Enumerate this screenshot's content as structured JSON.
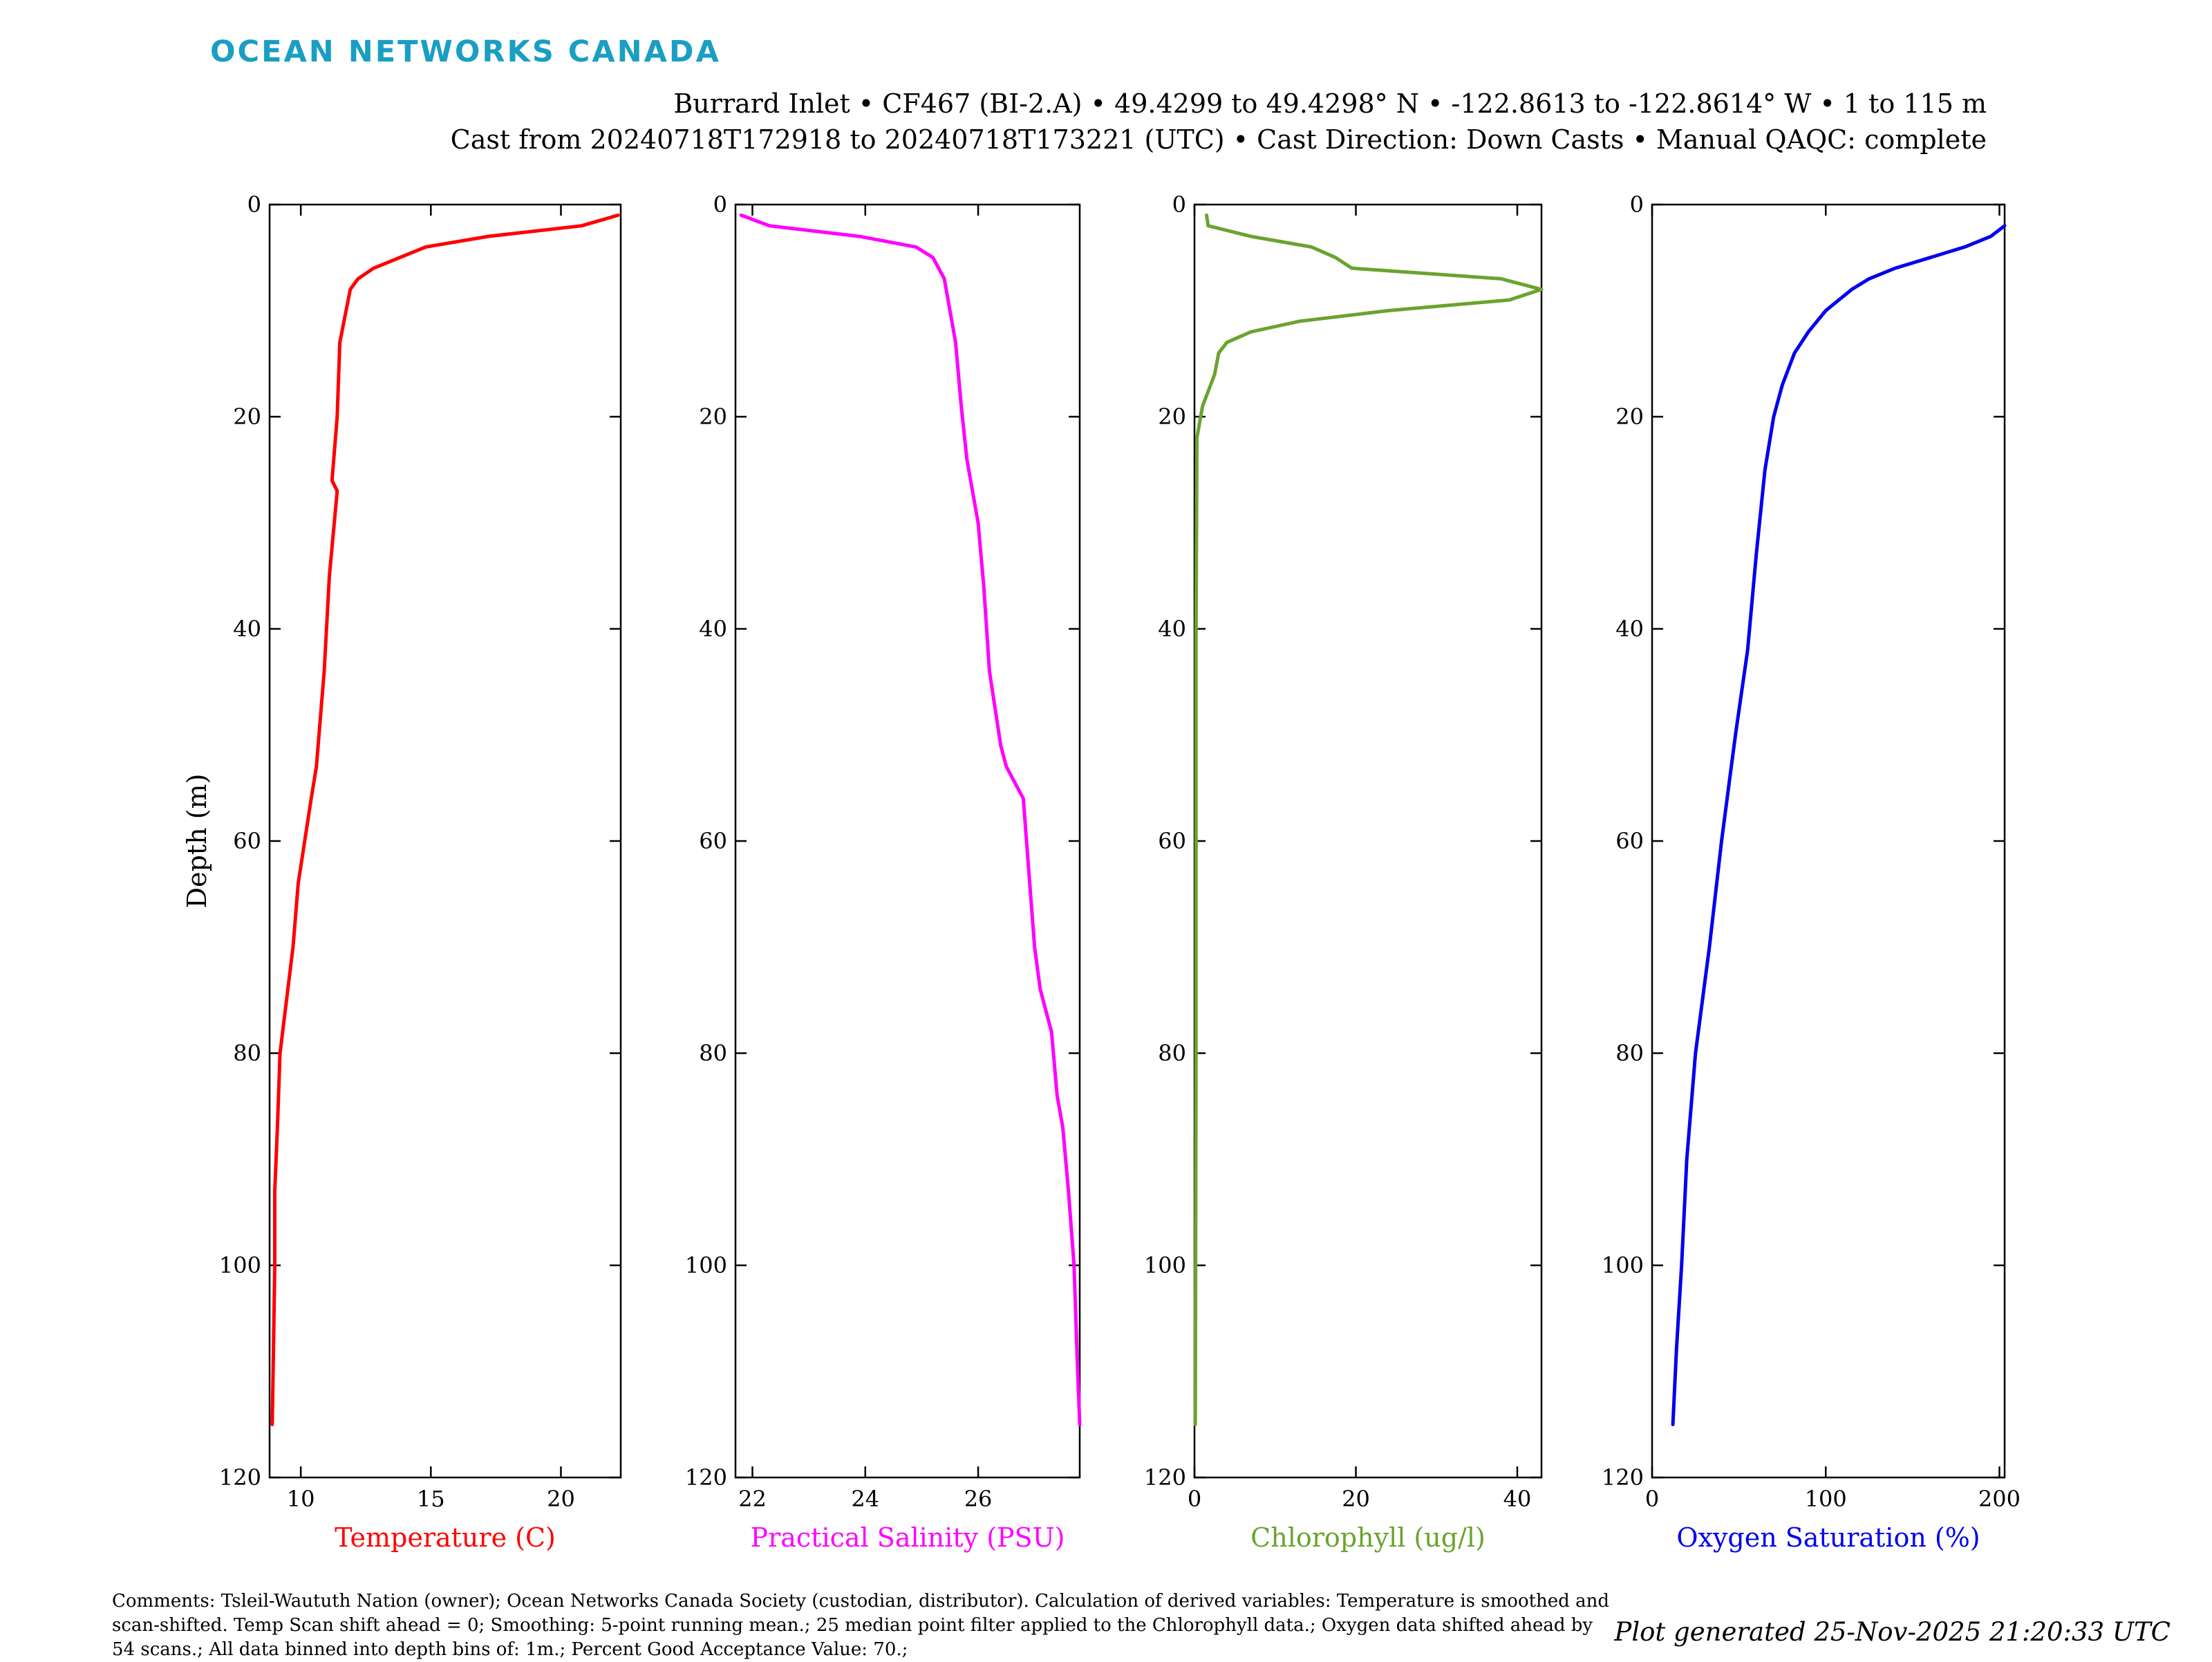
{
  "branding": {
    "logo_text": "OCEAN NETWORKS CANADA",
    "logo_color": "#1a9ec3"
  },
  "header": {
    "line1": "Burrard Inlet • CF467 (BI-2.A) • 49.4299 to 49.4298° N • -122.8613 to -122.8614° W • 1 to 115 m",
    "line2": "Cast from 20240718T172918 to 20240718T173221 (UTC) • Cast Direction: Down Casts • Manual QAQC: complete"
  },
  "footer": {
    "comments": "Comments: Tsleil-Waututh Nation (owner); Ocean Networks Canada Society (custodian, distributor). Calculation of derived variables: Temperature is smoothed and scan-shifted. Temp Scan shift ahead = 0; Smoothing: 5-point running mean.; 25 median point filter applied to the Chlorophyll data.; Oxygen data shifted ahead by 54 scans.; All data binned into depth bins of: 1m.; Percent Good Acceptance Value: 70.;",
    "generated": "Plot generated 25-Nov-2025 21:20:33 UTC"
  },
  "chart_data": [
    {
      "type": "line",
      "ylabel": "Depth (m)",
      "xlabel": "Temperature (C)",
      "color": "#ff0000",
      "xlim": [
        8.8,
        22.3
      ],
      "ylim": [
        120,
        0
      ],
      "y_inverted": true,
      "xticks": [
        10,
        15,
        20
      ],
      "yticks": [
        0,
        20,
        40,
        60,
        80,
        100,
        120
      ],
      "series": [
        {
          "x": [
            22.2,
            20.8,
            17.2,
            14.8,
            12.8,
            12.2,
            11.9,
            11.5,
            11.4,
            11.3,
            11.2,
            11.4,
            11.1,
            10.9,
            10.6,
            10.4,
            9.9,
            9.7,
            9.4,
            9.2,
            9.1,
            9.0,
            9.0,
            8.95,
            8.9
          ],
          "y": [
            1,
            2,
            3,
            4,
            6,
            7,
            8,
            13,
            20,
            23,
            26,
            27,
            35,
            44,
            53,
            56,
            64,
            70,
            76,
            80,
            87,
            93,
            100,
            108,
            115
          ]
        }
      ]
    },
    {
      "type": "line",
      "xlabel": "Practical Salinity (PSU)",
      "color": "#ff00ff",
      "xlim": [
        21.7,
        27.8
      ],
      "ylim": [
        120,
        0
      ],
      "y_inverted": true,
      "xticks": [
        22,
        24,
        26
      ],
      "yticks": [
        0,
        20,
        40,
        60,
        80,
        100,
        120
      ],
      "series": [
        {
          "x": [
            21.8,
            22.3,
            23.9,
            24.9,
            25.2,
            25.4,
            25.6,
            25.7,
            25.8,
            26.0,
            26.1,
            26.2,
            26.4,
            26.5,
            26.8,
            26.9,
            27.0,
            27.1,
            27.3,
            27.4,
            27.5,
            27.6,
            27.7,
            27.75,
            27.8
          ],
          "y": [
            1,
            2,
            3,
            4,
            5,
            7,
            13,
            19,
            24,
            30,
            36,
            44,
            51,
            53,
            56,
            63,
            70,
            74,
            78,
            84,
            87,
            93,
            100,
            108,
            115
          ]
        }
      ]
    },
    {
      "type": "line",
      "xlabel": "Chlorophyll (ug/l)",
      "color": "#6aa32e",
      "xlim": [
        0,
        43
      ],
      "ylim": [
        120,
        0
      ],
      "y_inverted": true,
      "xticks": [
        0,
        20,
        40
      ],
      "yticks": [
        0,
        20,
        40,
        60,
        80,
        100,
        120
      ],
      "series": [
        {
          "x": [
            1.5,
            1.7,
            7.0,
            14.5,
            17.5,
            19.5,
            38.0,
            43.0,
            39.0,
            24.0,
            13.0,
            7.0,
            4.0,
            3.0,
            2.5,
            1.0,
            0.3,
            0.2,
            0.2,
            0.1
          ],
          "y": [
            1,
            2,
            3,
            4,
            5,
            6,
            7,
            8,
            9,
            10,
            11,
            12,
            13,
            14,
            16,
            19,
            22,
            40,
            80,
            115
          ]
        }
      ]
    },
    {
      "type": "line",
      "xlabel": "Oxygen Saturation (%)",
      "color": "#0000ee",
      "xlim": [
        0,
        203
      ],
      "ylim": [
        120,
        0
      ],
      "y_inverted": true,
      "xticks": [
        0,
        100,
        200
      ],
      "yticks": [
        0,
        20,
        40,
        60,
        80,
        100,
        120
      ],
      "series": [
        {
          "x": [
            203,
            195,
            180,
            160,
            140,
            125,
            115,
            100,
            90,
            82,
            75,
            70,
            65,
            60,
            55,
            48,
            40,
            33,
            25,
            20,
            17,
            14,
            12
          ],
          "y": [
            2,
            3,
            4,
            5,
            6,
            7,
            8,
            10,
            12,
            14,
            17,
            20,
            25,
            33,
            42,
            50,
            60,
            70,
            80,
            90,
            100,
            108,
            115
          ]
        }
      ]
    }
  ]
}
